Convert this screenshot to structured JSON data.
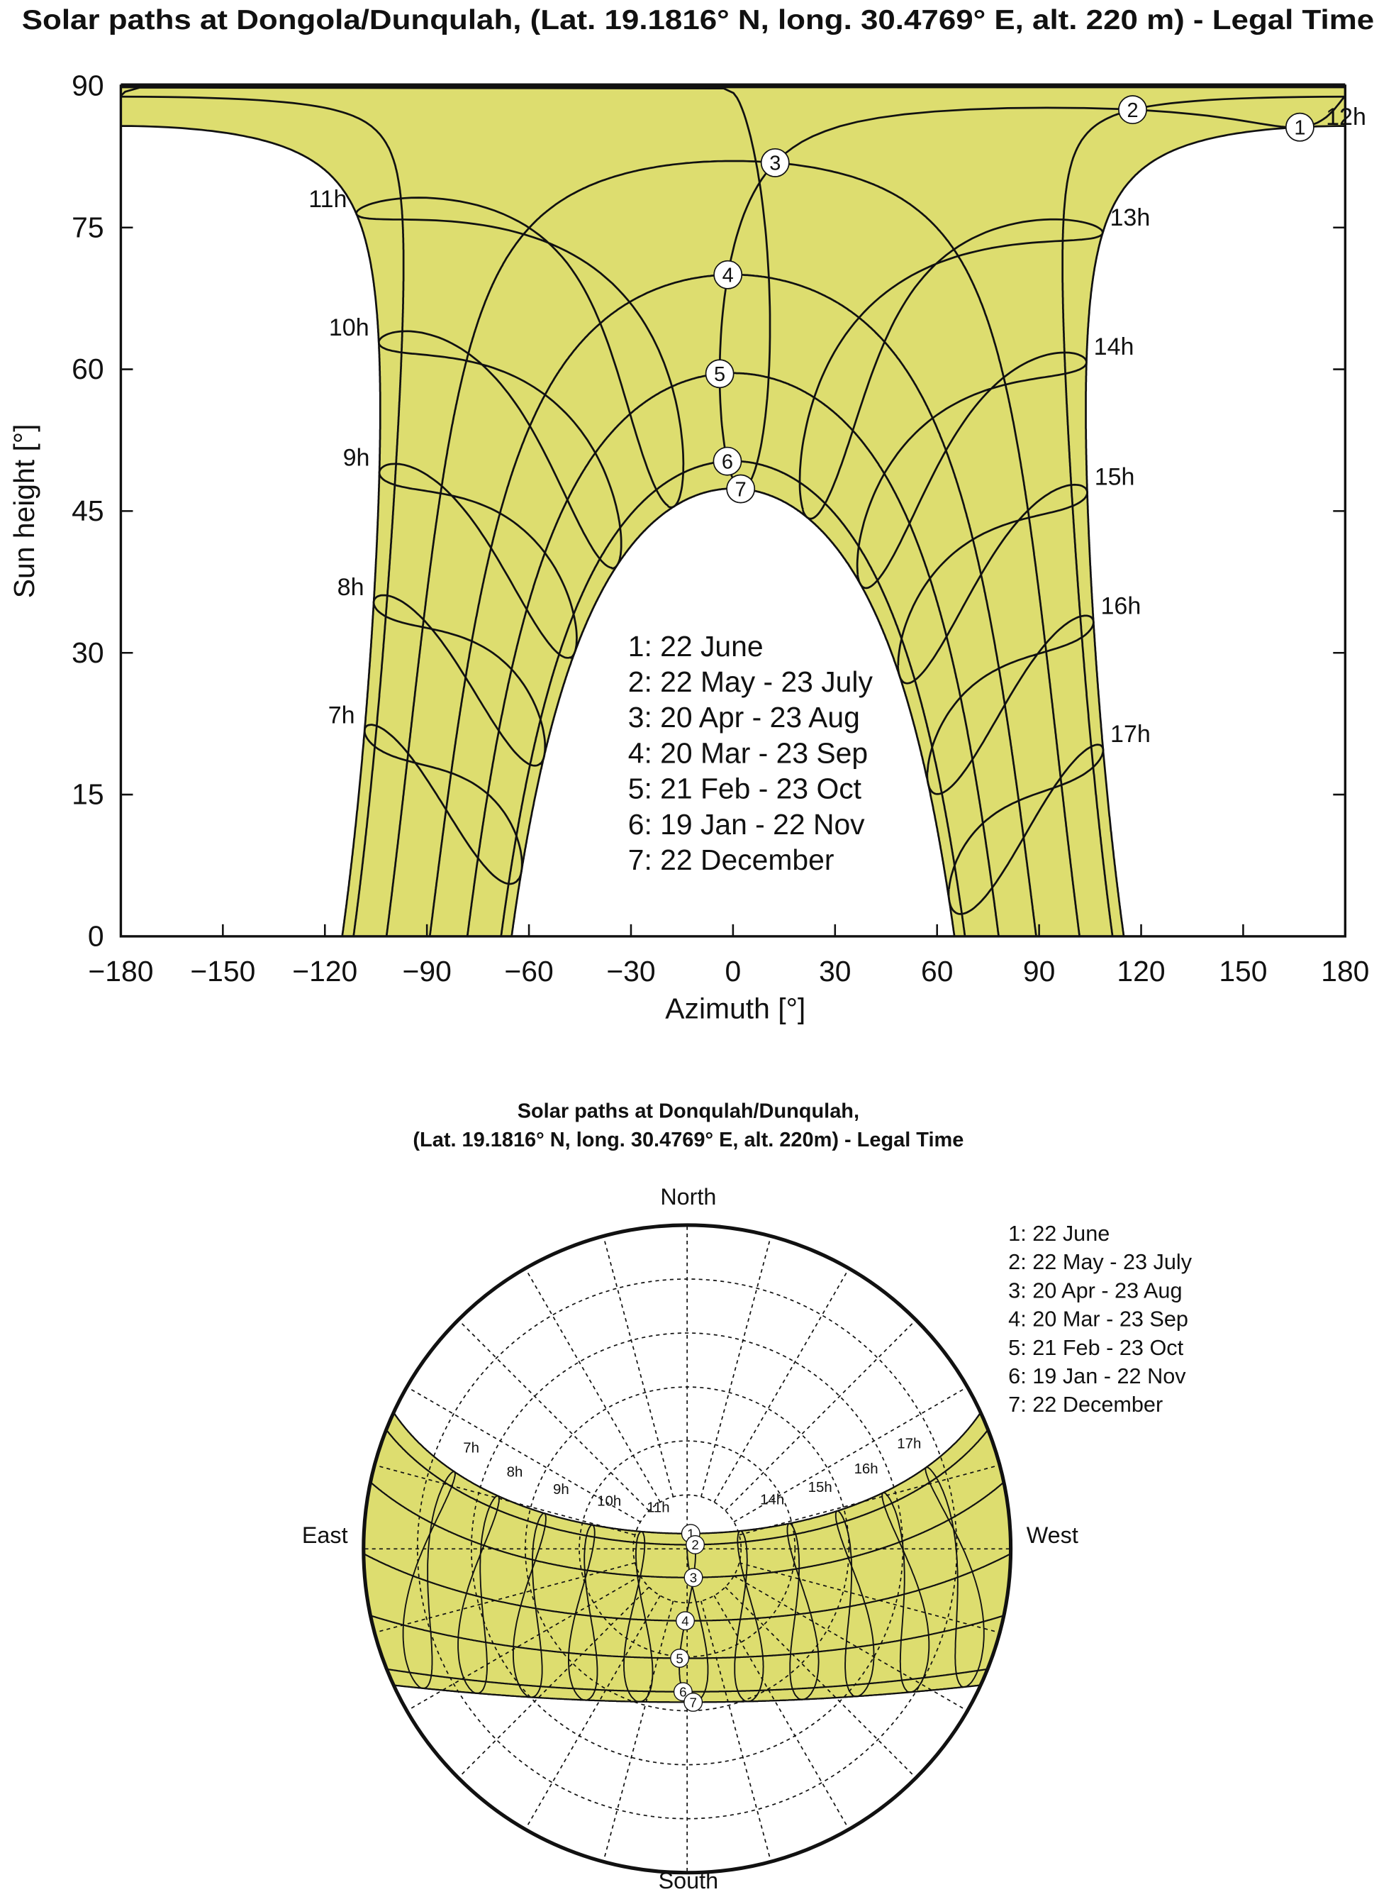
{
  "site": {
    "latitude": 19.1816,
    "longitude": 30.4769,
    "altitude_m": 220
  },
  "dates": [
    {
      "id": "1",
      "day_of_year": 173
    },
    {
      "id": "2",
      "day_of_year": 142
    },
    {
      "id": "3",
      "day_of_year": 110
    },
    {
      "id": "4",
      "day_of_year": 79
    },
    {
      "id": "5",
      "day_of_year": 52
    },
    {
      "id": "6",
      "day_of_year": 19
    },
    {
      "id": "7",
      "day_of_year": 356
    }
  ],
  "colors": {
    "fill": "#dddd6f",
    "line": "#111111",
    "marker": "#ffffff"
  },
  "chart_data": [
    {
      "type": "line",
      "title": "Solar paths at Dongola/Dunqulah, (Lat. 19.1816° N, long. 30.4769° E, alt. 220 m) - Legal Time",
      "xlabel": "Azimuth [°]",
      "ylabel": "Sun height [°]",
      "xlim": [
        -180,
        180
      ],
      "ylim": [
        0,
        90
      ],
      "grid": false,
      "xticks": [
        -180,
        -150,
        -120,
        -90,
        -60,
        -30,
        0,
        30,
        60,
        90,
        120,
        150,
        180
      ],
      "xtick_labels": [
        "−180",
        "−150",
        "−120",
        "−90",
        "−60",
        "−30",
        "0",
        "30",
        "60",
        "90",
        "120",
        "150",
        "180"
      ],
      "yticks": [
        0,
        15,
        30,
        45,
        60,
        75,
        90
      ],
      "ytick_labels": [
        "0",
        "15",
        "30",
        "45",
        "60",
        "75",
        "90"
      ],
      "hours": [
        7,
        8,
        9,
        10,
        11,
        12,
        13,
        14,
        15,
        16,
        17
      ],
      "hour_labels": [
        "7h",
        "8h",
        "9h",
        "10h",
        "11h",
        "12h",
        "13h",
        "14h",
        "15h",
        "16h",
        "17h"
      ],
      "legend_placement": "center",
      "legend": [
        "1: 22 June",
        "2: 22 May - 23 July",
        "3: 20 Apr - 23 Aug",
        "4: 20 Mar - 23 Sep",
        "5: 21 Feb - 23 Oct",
        "6: 19 Jan - 22 Nov",
        "7: 22 December"
      ]
    },
    {
      "type": "polar",
      "title_line1": "Solar paths at Donqulah/Dunqulah,",
      "title_line2": "(Lat. 19.1816° N, long. 30.4769° E, alt. 220m) - Legal Time",
      "directions": {
        "north": "North",
        "south": "South",
        "east": "East",
        "west": "West"
      },
      "altitude_rings_deg": [
        15,
        30,
        45,
        60,
        75
      ],
      "hours": [
        7,
        8,
        9,
        10,
        11,
        14,
        15,
        16,
        17
      ],
      "hour_labels": [
        "7h",
        "8h",
        "9h",
        "10h",
        "11h",
        "14h",
        "15h",
        "16h",
        "17h"
      ],
      "legend_placement": "top-right",
      "legend": [
        "1: 22  June",
        "2: 22  May - 23  July",
        "3: 20  Apr - 23  Aug",
        "4: 20  Mar - 23  Sep",
        "5: 21  Feb - 23  Oct",
        "6: 19  Jan - 22  Nov",
        "7: 22  December"
      ]
    }
  ]
}
